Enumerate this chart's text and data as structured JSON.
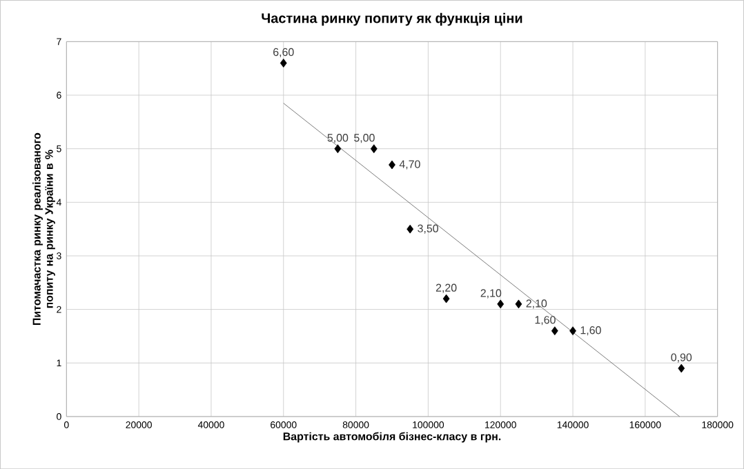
{
  "chart_data": {
    "type": "scatter",
    "title": "Частина ринку попиту як функція ціни",
    "xlabel": "Вартість автомобіля бізнес-класу в грн.",
    "ylabel": "Питомачастка ринку реалізованого попиту на ринку України в %",
    "xlim": [
      0,
      180000
    ],
    "ylim": [
      0,
      7
    ],
    "xticks": [
      0,
      20000,
      40000,
      60000,
      80000,
      100000,
      120000,
      140000,
      160000,
      180000
    ],
    "yticks": [
      0,
      1,
      2,
      3,
      4,
      5,
      6,
      7
    ],
    "grid": true,
    "marker": "diamond",
    "series": [
      {
        "color": "#000000",
        "x": [
          60000,
          75000,
          85000,
          90000,
          95000,
          105000,
          120000,
          125000,
          135000,
          140000,
          170000
        ],
        "values": [
          6.6,
          5.0,
          5.0,
          4.7,
          3.5,
          2.2,
          2.1,
          2.1,
          1.6,
          1.6,
          0.9
        ],
        "value_labels": [
          "6,60",
          "5,00",
          "5,00",
          "4,70",
          "3,50",
          "2,20",
          "2,10",
          "2,10",
          "1,60",
          "1,60",
          "0,90"
        ]
      },
      {
        "type": "line",
        "color": "#595959",
        "marker": "none",
        "x": [
          60000,
          169500
        ],
        "values": [
          5.85,
          0
        ]
      }
    ]
  }
}
